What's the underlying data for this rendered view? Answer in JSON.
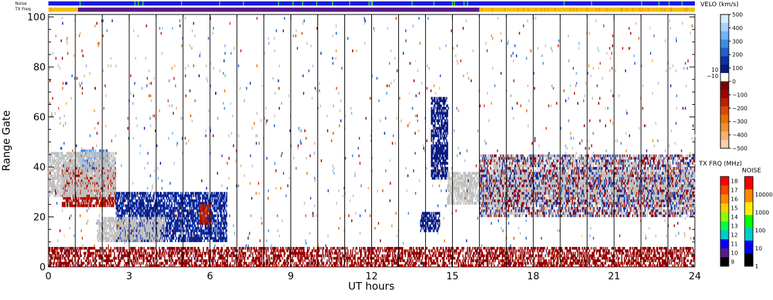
{
  "chart_data": {
    "type": "heatmap",
    "title": "",
    "xlabel": "UT hours",
    "ylabel": "Range Gate",
    "xlim": [
      0,
      24
    ],
    "ylim": [
      0,
      101
    ],
    "x_ticks": [
      "0",
      "3",
      "6",
      "9",
      "12",
      "15",
      "18",
      "21",
      "24"
    ],
    "x_tick_values": [
      0,
      3,
      6,
      9,
      12,
      15,
      18,
      21,
      24
    ],
    "y_ticks": [
      "0",
      "20",
      "40",
      "60",
      "80",
      "100"
    ],
    "y_tick_values": [
      0,
      20,
      40,
      60,
      80,
      100
    ],
    "vertical_scan_lines_ut": [
      1,
      2,
      3,
      4,
      5,
      6,
      7,
      8,
      9,
      10,
      11,
      12,
      13,
      14,
      15,
      16,
      17,
      18,
      19,
      20,
      21,
      22,
      23
    ],
    "top_strips": {
      "noise_label": "Noise",
      "txfreq_label": "TX Freq",
      "noise_color": "#1a1ae6",
      "txfreq_segments": [
        {
          "from": 0,
          "to": 1.1,
          "color": "#f0c000"
        },
        {
          "from": 1.1,
          "to": 16,
          "color": "#5a1a8a"
        },
        {
          "from": 16,
          "to": 24,
          "color": "#f0c000"
        }
      ]
    },
    "velocity_colorbar": {
      "title": "VELO (km/s)",
      "ticks": [
        "500",
        "400",
        "300",
        "200",
        "100",
        "0",
        "−100",
        "−200",
        "−300",
        "−400",
        "−500"
      ],
      "side_ticks": [
        "10",
        "−10"
      ],
      "colors_top_to_bottom": [
        "#d8ecff",
        "#a6d2ff",
        "#6eb4ff",
        "#3a8ee8",
        "#1f5fd0",
        "#0d2fa8",
        "#0a1a80",
        "#ffffff",
        "#7a0000",
        "#a00000",
        "#c02000",
        "#d84a00",
        "#e87000",
        "#f09030",
        "#f5b070",
        "#f8d0a8"
      ]
    },
    "txfreq_colorbar": {
      "title": "TX FRQ (MHz)",
      "ticks": [
        "18",
        "17",
        "16",
        "15",
        "14",
        "13",
        "12",
        "11",
        "10",
        "9"
      ],
      "colors_top_to_bottom": [
        "#ff0000",
        "#ff4400",
        "#ff8800",
        "#ffcc00",
        "#88ff00",
        "#00ff44",
        "#00cccc",
        "#0000ff",
        "#5a1a8a",
        "#000000"
      ]
    },
    "noise_colorbar": {
      "title": "NOISE",
      "ticks": [
        "10000",
        "1000",
        "100",
        "10",
        "1"
      ],
      "colors_top_to_bottom": [
        "#ff0000",
        "#ff8800",
        "#ffee00",
        "#00ff00",
        "#00cccc",
        "#0000ff",
        "#000000"
      ]
    },
    "ground_scatter_color": "#c0c0c0",
    "series": [
      {
        "region": "near-range negative band",
        "x_range": [
          0,
          24
        ],
        "gate_range": [
          0,
          8
        ],
        "velocity": -80,
        "density": 0.55
      },
      {
        "region": "early morning positive patch",
        "x_range": [
          1.2,
          2.2
        ],
        "gate_range": [
          38,
          47
        ],
        "velocity": 250
      },
      {
        "region": "early morning negative patch",
        "x_range": [
          0.5,
          2.5
        ],
        "gate_range": [
          24,
          40
        ],
        "velocity": -120
      },
      {
        "region": "early morning ground scatter",
        "x_range": [
          0,
          2.5
        ],
        "gate_range": [
          28,
          46
        ],
        "velocity": 0
      },
      {
        "region": "main positive patch",
        "x_range": [
          2.5,
          6.6
        ],
        "gate_range": [
          10,
          30
        ],
        "velocity": 80
      },
      {
        "region": "main ground scatter",
        "x_range": [
          1.8,
          4.3
        ],
        "gate_range": [
          10,
          20
        ],
        "velocity": 0
      },
      {
        "region": "small negative patch",
        "x_range": [
          5.6,
          6.0
        ],
        "gate_range": [
          17,
          25
        ],
        "velocity": -150
      },
      {
        "region": "small patch 14 UT",
        "x_range": [
          13.8,
          14.5
        ],
        "gate_range": [
          14,
          22
        ],
        "velocity": 60
      },
      {
        "region": "vertical streak 14.5 UT",
        "x_range": [
          14.2,
          14.8
        ],
        "gate_range": [
          35,
          68
        ],
        "velocity": 50
      },
      {
        "region": "afternoon ground scatter band",
        "x_range": [
          14.8,
          24
        ],
        "gate_range": [
          25,
          38
        ],
        "velocity": 0
      },
      {
        "region": "afternoon mixed echoes",
        "x_range": [
          16,
          24
        ],
        "gate_range": [
          20,
          45
        ],
        "velocity": 20
      }
    ]
  }
}
